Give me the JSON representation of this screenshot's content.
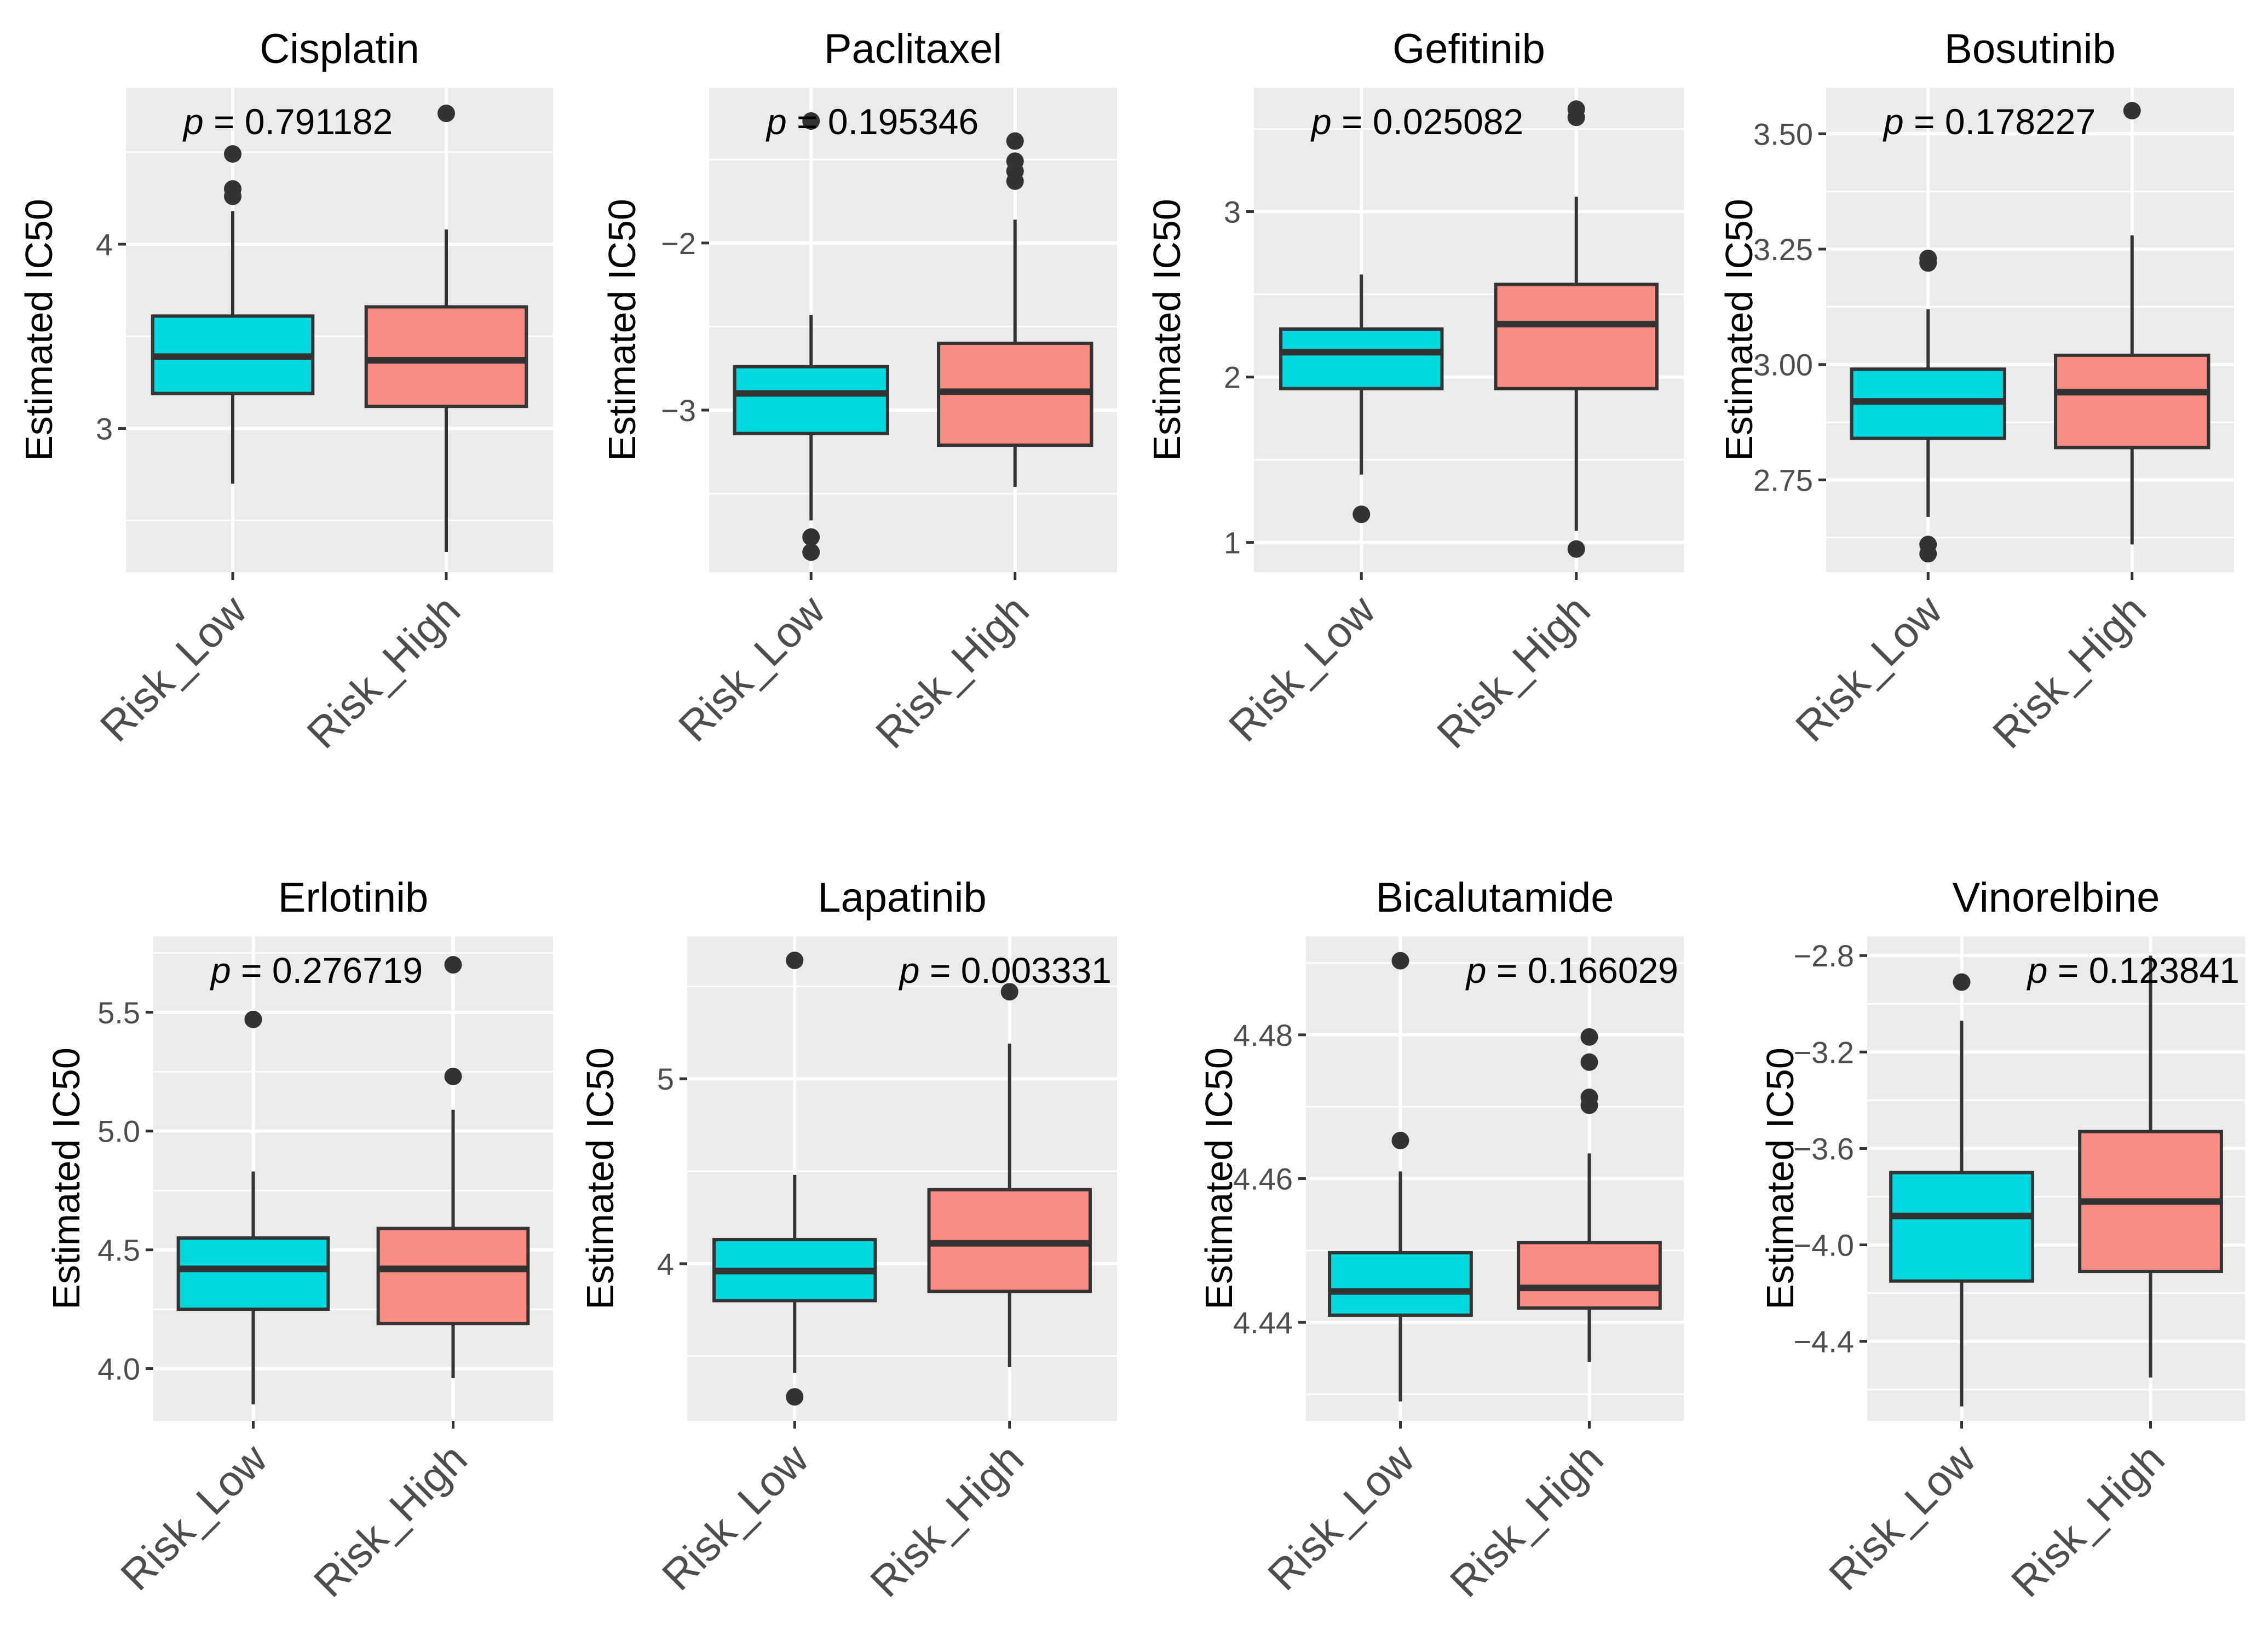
{
  "figure": {
    "ylabel": "Estimated IC50",
    "group_colors": {
      "Risk_Low": "#00D8E0",
      "Risk_High": "#FA8C82"
    },
    "panel_background": "#EBEBEB",
    "gridline_color": "#FFFFFF",
    "outline_color": "#333333"
  },
  "chart_data": [
    {
      "type": "box",
      "title": "Cisplatin",
      "p_label": "p",
      "p_eq": " = 0.791182",
      "p_pos": "top-left",
      "xlabel": "",
      "ylabel": "Estimated IC50",
      "ylim": [
        2.22,
        4.85
      ],
      "yticks": [
        3,
        4
      ],
      "ytick_labels": [
        "3",
        "4"
      ],
      "minor_yticks": [
        2.5,
        3.5,
        4.5
      ],
      "categories": [
        "Risk_Low",
        "Risk_High"
      ],
      "boxes": [
        {
          "group": "Risk_Low",
          "lower_whisker": 2.7,
          "q1": 3.19,
          "median": 3.39,
          "q3": 3.61,
          "upper_whisker": 4.18,
          "outliers": [
            4.26,
            4.3,
            4.49
          ]
        },
        {
          "group": "Risk_High",
          "lower_whisker": 2.33,
          "q1": 3.12,
          "median": 3.37,
          "q3": 3.66,
          "upper_whisker": 4.08,
          "outliers": [
            4.71
          ]
        }
      ]
    },
    {
      "type": "box",
      "title": "Paclitaxel",
      "p_label": "p",
      "p_eq": " = 0.195346",
      "p_pos": "top-left",
      "xlabel": "",
      "ylabel": "Estimated IC50",
      "ylim": [
        -3.97,
        -1.07
      ],
      "yticks": [
        -3,
        -2
      ],
      "ytick_labels": [
        "−3",
        "−2"
      ],
      "minor_yticks": [
        -3.5,
        -2.5,
        -1.5
      ],
      "categories": [
        "Risk_Low",
        "Risk_High"
      ],
      "boxes": [
        {
          "group": "Risk_Low",
          "lower_whisker": -3.66,
          "q1": -3.14,
          "median": -2.9,
          "q3": -2.74,
          "upper_whisker": -2.43,
          "outliers": [
            -3.76,
            -3.85,
            -1.27
          ]
        },
        {
          "group": "Risk_High",
          "lower_whisker": -3.46,
          "q1": -3.21,
          "median": -2.89,
          "q3": -2.6,
          "upper_whisker": -1.86,
          "outliers": [
            -1.39,
            -1.51,
            -1.57,
            -1.63
          ]
        }
      ]
    },
    {
      "type": "box",
      "title": "Gefitinib",
      "p_label": "p",
      "p_eq": " = 0.025082",
      "p_pos": "top-left",
      "xlabel": "",
      "ylabel": "Estimated IC50",
      "ylim": [
        0.82,
        3.75
      ],
      "yticks": [
        1,
        2,
        3
      ],
      "ytick_labels": [
        "1",
        "2",
        "3"
      ],
      "minor_yticks": [
        1.5,
        2.5,
        3.5
      ],
      "categories": [
        "Risk_Low",
        "Risk_High"
      ],
      "boxes": [
        {
          "group": "Risk_Low",
          "lower_whisker": 1.41,
          "q1": 1.93,
          "median": 2.15,
          "q3": 2.29,
          "upper_whisker": 2.62,
          "outliers": [
            1.17
          ]
        },
        {
          "group": "Risk_High",
          "lower_whisker": 1.07,
          "q1": 1.93,
          "median": 2.32,
          "q3": 2.56,
          "upper_whisker": 3.09,
          "outliers": [
            0.96,
            3.57,
            3.62
          ]
        }
      ]
    },
    {
      "type": "box",
      "title": "Bosutinib",
      "p_label": "p",
      "p_eq": " = 0.178227",
      "p_pos": "top-left",
      "xlabel": "",
      "ylabel": "Estimated IC50",
      "ylim": [
        2.55,
        3.6
      ],
      "yticks": [
        2.75,
        3.0,
        3.25,
        3.5
      ],
      "ytick_labels": [
        "2.75",
        "3.00",
        "3.25",
        "3.50"
      ],
      "minor_yticks": [
        2.625,
        2.875,
        3.125,
        3.375
      ],
      "categories": [
        "Risk_Low",
        "Risk_High"
      ],
      "boxes": [
        {
          "group": "Risk_Low",
          "lower_whisker": 2.67,
          "q1": 2.84,
          "median": 2.92,
          "q3": 2.99,
          "upper_whisker": 3.12,
          "outliers": [
            2.59,
            2.61,
            3.22,
            3.23
          ]
        },
        {
          "group": "Risk_High",
          "lower_whisker": 2.61,
          "q1": 2.82,
          "median": 2.94,
          "q3": 3.02,
          "upper_whisker": 3.28,
          "outliers": [
            3.55
          ]
        }
      ]
    },
    {
      "type": "box",
      "title": "Erlotinib",
      "p_label": "p",
      "p_eq": " = 0.276719",
      "p_pos": "top-left",
      "xlabel": "",
      "ylabel": "Estimated IC50",
      "ylim": [
        3.78,
        5.82
      ],
      "yticks": [
        4.0,
        4.5,
        5.0,
        5.5
      ],
      "ytick_labels": [
        "4.0",
        "4.5",
        "5.0",
        "5.5"
      ],
      "minor_yticks": [
        4.25,
        4.75,
        5.25,
        5.75
      ],
      "categories": [
        "Risk_Low",
        "Risk_High"
      ],
      "boxes": [
        {
          "group": "Risk_Low",
          "lower_whisker": 3.85,
          "q1": 4.25,
          "median": 4.42,
          "q3": 4.55,
          "upper_whisker": 4.83,
          "outliers": [
            5.47
          ]
        },
        {
          "group": "Risk_High",
          "lower_whisker": 3.96,
          "q1": 4.19,
          "median": 4.42,
          "q3": 4.59,
          "upper_whisker": 5.09,
          "outliers": [
            5.23,
            5.7
          ]
        }
      ]
    },
    {
      "type": "box",
      "title": "Lapatinib",
      "p_label": "p",
      "p_eq": " = 0.003331",
      "p_pos": "top-right",
      "xlabel": "",
      "ylabel": "Estimated IC50",
      "ylim": [
        3.15,
        5.77
      ],
      "yticks": [
        4,
        5
      ],
      "ytick_labels": [
        "4",
        "5"
      ],
      "minor_yticks": [
        3.5,
        4.5,
        5.5
      ],
      "categories": [
        "Risk_Low",
        "Risk_High"
      ],
      "boxes": [
        {
          "group": "Risk_Low",
          "lower_whisker": 3.41,
          "q1": 3.8,
          "median": 3.96,
          "q3": 4.13,
          "upper_whisker": 4.48,
          "outliers": [
            3.28,
            5.64
          ]
        },
        {
          "group": "Risk_High",
          "lower_whisker": 3.44,
          "q1": 3.85,
          "median": 4.11,
          "q3": 4.4,
          "upper_whisker": 5.19,
          "outliers": [
            5.47
          ]
        }
      ]
    },
    {
      "type": "box",
      "title": "Bicalutamide",
      "p_label": "p",
      "p_eq": " = 0.166029",
      "p_pos": "top-right",
      "xlabel": "",
      "ylabel": "Estimated IC50",
      "ylim": [
        4.4263,
        4.4937
      ],
      "yticks": [
        4.44,
        4.46,
        4.48
      ],
      "ytick_labels": [
        "4.44",
        "4.46",
        "4.48"
      ],
      "minor_yticks": [
        4.43,
        4.45,
        4.47,
        4.49
      ],
      "categories": [
        "Risk_Low",
        "Risk_High"
      ],
      "boxes": [
        {
          "group": "Risk_Low",
          "lower_whisker": 4.429,
          "q1": 4.441,
          "median": 4.4443,
          "q3": 4.4497,
          "upper_whisker": 4.461,
          "outliers": [
            4.4653,
            4.4903
          ]
        },
        {
          "group": "Risk_High",
          "lower_whisker": 4.4345,
          "q1": 4.442,
          "median": 4.4448,
          "q3": 4.4511,
          "upper_whisker": 4.4635,
          "outliers": [
            4.4702,
            4.4713,
            4.4762,
            4.4797
          ]
        }
      ]
    },
    {
      "type": "box",
      "title": "Vinorelbine",
      "p_label": "p",
      "p_eq": " = 0.123841",
      "p_pos": "top-right",
      "xlabel": "",
      "ylabel": "Estimated IC50",
      "ylim": [
        -4.73,
        -2.72
      ],
      "yticks": [
        -4.4,
        -4.0,
        -3.6,
        -3.2,
        -2.8
      ],
      "ytick_labels": [
        "−4.4",
        "−4.0",
        "−3.6",
        "−3.2",
        "−2.8"
      ],
      "minor_yticks": [
        -4.6,
        -4.2,
        -3.8,
        -3.4,
        -3.0
      ],
      "categories": [
        "Risk_Low",
        "Risk_High"
      ],
      "boxes": [
        {
          "group": "Risk_Low",
          "lower_whisker": -4.67,
          "q1": -4.15,
          "median": -3.88,
          "q3": -3.7,
          "upper_whisker": -3.07,
          "outliers": [
            -2.91
          ]
        },
        {
          "group": "Risk_High",
          "lower_whisker": -4.55,
          "q1": -4.11,
          "median": -3.82,
          "q3": -3.53,
          "upper_whisker": -2.8,
          "outliers": []
        }
      ]
    }
  ]
}
